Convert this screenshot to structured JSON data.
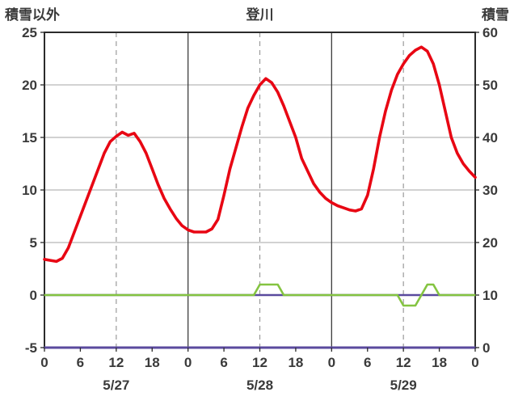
{
  "chart_data": {
    "type": "line",
    "title": "登川",
    "left_axis": {
      "label": "積雪以外",
      "min": -5,
      "max": 25,
      "ticks": [
        25,
        20,
        15,
        10,
        5,
        0,
        -5
      ],
      "gridline_values": [
        20,
        15,
        10,
        5,
        0
      ]
    },
    "right_axis": {
      "label": "積雪",
      "min": 0,
      "max": 60,
      "ticks": [
        60,
        50,
        40,
        30,
        20,
        10,
        0
      ]
    },
    "x_axis": {
      "hours_total": 72,
      "tick_interval": 6,
      "tick_labels": [
        "0",
        "6",
        "12",
        "18",
        "0",
        "6",
        "12",
        "18",
        "0",
        "6",
        "12",
        "18",
        "0"
      ],
      "date_labels": [
        "5/27",
        "5/28",
        "5/29"
      ],
      "dashed_gridline_hours": [
        12,
        36,
        60
      ],
      "solid_gridline_hours": [
        24,
        48
      ]
    },
    "style": {
      "grid_color": "#b8b8b8",
      "dash_color": "#9a9a9a",
      "day_line_color": "#3c3c3c",
      "border_color": "#2b2b2b",
      "background": "#ffffff",
      "text_color": "#3a3a3a"
    },
    "series": [
      {
        "name": "purple-left-baseline",
        "axis": "left",
        "color": "#5a4a9e",
        "width": 2.4,
        "constant": 0
      },
      {
        "name": "green-line",
        "axis": "left",
        "color": "#84c441",
        "width": 2.6,
        "values": [
          0,
          0,
          0,
          0,
          0,
          0,
          0,
          0,
          0,
          0,
          0,
          0,
          0,
          0,
          0,
          0,
          0,
          0,
          0,
          0,
          0,
          0,
          0,
          0,
          0,
          0,
          0,
          0,
          0,
          0,
          0,
          0,
          0,
          0,
          0,
          0,
          1,
          1,
          1,
          1,
          0,
          0,
          0,
          0,
          0,
          0,
          0,
          0,
          0,
          0,
          0,
          0,
          0,
          0,
          0,
          0,
          0,
          0,
          0,
          0,
          -1,
          -1,
          -1,
          0,
          1,
          1,
          0,
          0,
          0,
          0,
          0,
          0,
          0
        ]
      },
      {
        "name": "purple-bottom-line",
        "axis": "right",
        "color": "#5a4a9e",
        "width": 3,
        "constant": 0
      },
      {
        "name": "red-line",
        "axis": "left",
        "color": "#e80613",
        "width": 3.6,
        "values": [
          3.4,
          3.3,
          3.2,
          3.5,
          4.5,
          6.0,
          7.5,
          9.0,
          10.5,
          12.0,
          13.5,
          14.6,
          15.1,
          15.5,
          15.2,
          15.4,
          14.6,
          13.5,
          12.0,
          10.5,
          9.2,
          8.2,
          7.3,
          6.6,
          6.2,
          6.0,
          6.0,
          6.0,
          6.3,
          7.2,
          9.5,
          12.0,
          14.0,
          16.0,
          17.8,
          19.0,
          20.0,
          20.6,
          20.2,
          19.3,
          18.0,
          16.5,
          15.0,
          13.0,
          11.8,
          10.6,
          9.8,
          9.2,
          8.8,
          8.5,
          8.3,
          8.1,
          8.0,
          8.2,
          9.5,
          12.0,
          15.0,
          17.5,
          19.5,
          21.0,
          22.0,
          22.8,
          23.3,
          23.6,
          23.2,
          22.0,
          20.0,
          17.5,
          15.0,
          13.5,
          12.5,
          11.8,
          11.2
        ]
      }
    ]
  }
}
